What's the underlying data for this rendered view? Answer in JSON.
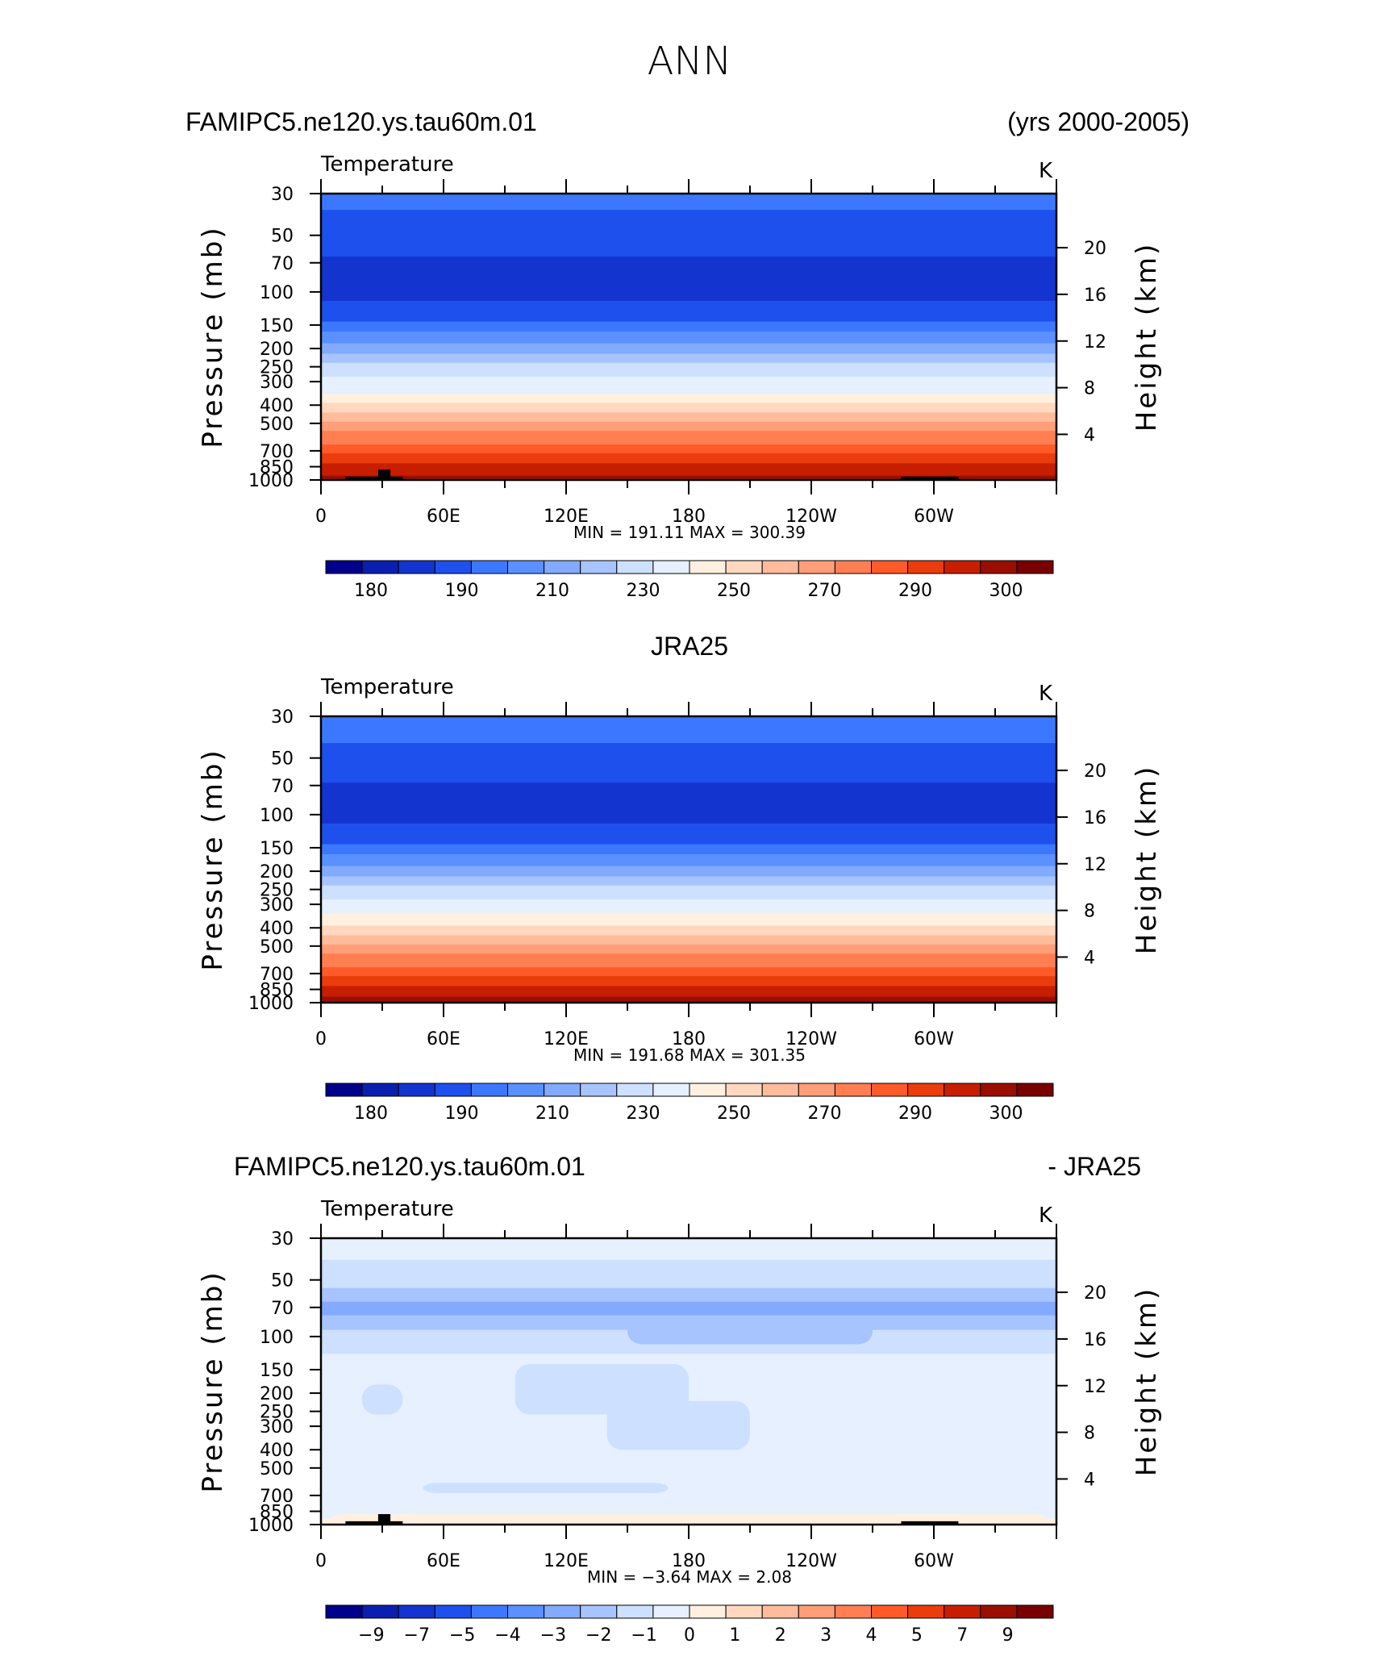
{
  "title": "ANN",
  "colors": {
    "abs_fill": [
      "#00008b",
      "#0a1fb0",
      "#1434d0",
      "#1e50ee",
      "#3c78ff",
      "#5a90ff",
      "#82aaff",
      "#a8c4ff",
      "#cde0ff",
      "#e6f0ff",
      "#fff0e0",
      "#ffd8bf",
      "#ffbc9c",
      "#ff9e78",
      "#ff7f52",
      "#ff5a28",
      "#ea3c0c",
      "#c81e00",
      "#9a0e00",
      "#780000"
    ],
    "diff_fill": [
      "#00008b",
      "#0a1fb0",
      "#1434d0",
      "#1e50ee",
      "#3c78ff",
      "#5a90ff",
      "#82aaff",
      "#a8c4ff",
      "#cde0ff",
      "#e6f0ff",
      "#fff0e0",
      "#ffd8bf",
      "#ffbc9c",
      "#ff9e78",
      "#ff7f52",
      "#ff5a28",
      "#ea3c0c",
      "#c81e00",
      "#9a0e00",
      "#780000"
    ]
  },
  "chart_data": [
    {
      "type": "heatmap",
      "name": "model",
      "title_left": "FAMIPC5.ne120.ys.tau60m.01",
      "title_right": "(yrs 2000-2005)",
      "variable": "Temperature",
      "units": "K",
      "ylabel": "Pressure (mb)",
      "y2label": "Height (km)",
      "xticks": [
        "0",
        "60E",
        "120E",
        "180",
        "120W",
        "60W"
      ],
      "xtick_values": [
        0,
        60,
        120,
        180,
        240,
        300
      ],
      "xlim": [
        0,
        360
      ],
      "yticks": [
        "30",
        "50",
        "70",
        "100",
        "150",
        "200",
        "250",
        "300",
        "400",
        "500",
        "700",
        "850",
        "1000"
      ],
      "ytick_values": [
        30,
        50,
        70,
        100,
        150,
        200,
        250,
        300,
        400,
        500,
        700,
        850,
        1000
      ],
      "ylim": [
        1000,
        30
      ],
      "y_scale": "log",
      "y2ticks": [
        "20",
        "16",
        "12",
        "8",
        "4"
      ],
      "y2tick_values": [
        20,
        16,
        12,
        8,
        4
      ],
      "min_label": "MIN = 191.11",
      "max_label": "MAX = 300.39",
      "min": 191.11,
      "max": 300.39,
      "profile": [
        {
          "p": 1000,
          "t": 292
        },
        {
          "p": 850,
          "t": 287
        },
        {
          "p": 700,
          "t": 279
        },
        {
          "p": 500,
          "t": 266
        },
        {
          "p": 400,
          "t": 257
        },
        {
          "p": 300,
          "t": 244
        },
        {
          "p": 250,
          "t": 232
        },
        {
          "p": 200,
          "t": 222
        },
        {
          "p": 150,
          "t": 212
        },
        {
          "p": 100,
          "t": 196
        },
        {
          "p": 70,
          "t": 198
        },
        {
          "p": 50,
          "t": 206
        },
        {
          "p": 30,
          "t": 213
        }
      ],
      "colorbar_labels": [
        "180",
        "190",
        "210",
        "230",
        "250",
        "270",
        "290",
        "300"
      ]
    },
    {
      "type": "heatmap",
      "name": "obs",
      "title_center": "JRA25",
      "variable": "Temperature",
      "units": "K",
      "ylabel": "Pressure (mb)",
      "y2label": "Height (km)",
      "xticks": [
        "0",
        "60E",
        "120E",
        "180",
        "120W",
        "60W"
      ],
      "xtick_values": [
        0,
        60,
        120,
        180,
        240,
        300
      ],
      "xlim": [
        0,
        360
      ],
      "yticks": [
        "30",
        "50",
        "70",
        "100",
        "150",
        "200",
        "250",
        "300",
        "400",
        "500",
        "700",
        "850",
        "1000"
      ],
      "ytick_values": [
        30,
        50,
        70,
        100,
        150,
        200,
        250,
        300,
        400,
        500,
        700,
        850,
        1000
      ],
      "ylim": [
        1000,
        30
      ],
      "y_scale": "log",
      "y2ticks": [
        "20",
        "16",
        "12",
        "8",
        "4"
      ],
      "y2tick_values": [
        20,
        16,
        12,
        8,
        4
      ],
      "min_label": "MIN = 191.68",
      "max_label": "MAX = 301.35",
      "min": 191.68,
      "max": 301.35,
      "profile": [
        {
          "p": 1000,
          "t": 293
        },
        {
          "p": 850,
          "t": 287
        },
        {
          "p": 700,
          "t": 279
        },
        {
          "p": 500,
          "t": 266
        },
        {
          "p": 400,
          "t": 257
        },
        {
          "p": 300,
          "t": 245
        },
        {
          "p": 250,
          "t": 233
        },
        {
          "p": 200,
          "t": 223
        },
        {
          "p": 150,
          "t": 212
        },
        {
          "p": 100,
          "t": 197
        },
        {
          "p": 70,
          "t": 199
        },
        {
          "p": 50,
          "t": 208
        },
        {
          "p": 30,
          "t": 214
        }
      ],
      "colorbar_labels": [
        "180",
        "190",
        "210",
        "230",
        "250",
        "270",
        "290",
        "300"
      ]
    },
    {
      "type": "heatmap",
      "name": "difference",
      "title_left": "FAMIPC5.ne120.ys.tau60m.01",
      "title_right": "- JRA25",
      "variable": "Temperature",
      "units": "K",
      "ylabel": "Pressure (mb)",
      "y2label": "Height (km)",
      "xticks": [
        "0",
        "60E",
        "120E",
        "180",
        "120W",
        "60W"
      ],
      "xtick_values": [
        0,
        60,
        120,
        180,
        240,
        300
      ],
      "xlim": [
        0,
        360
      ],
      "yticks": [
        "30",
        "50",
        "70",
        "100",
        "150",
        "200",
        "250",
        "300",
        "400",
        "500",
        "700",
        "850",
        "1000"
      ],
      "ytick_values": [
        30,
        50,
        70,
        100,
        150,
        200,
        250,
        300,
        400,
        500,
        700,
        850,
        1000
      ],
      "ylim": [
        1000,
        30
      ],
      "y_scale": "log",
      "y2ticks": [
        "20",
        "16",
        "12",
        "8",
        "4"
      ],
      "y2tick_values": [
        20,
        16,
        12,
        8,
        4
      ],
      "min_label": "MIN = −3.64",
      "max_label": "MAX = 2.08",
      "min": -3.64,
      "max": 2.08,
      "profile": [
        {
          "p": 1000,
          "d": 0.5
        },
        {
          "p": 850,
          "d": -0.5
        },
        {
          "p": 700,
          "d": -0.5
        },
        {
          "p": 500,
          "d": -0.5
        },
        {
          "p": 400,
          "d": -0.5
        },
        {
          "p": 300,
          "d": -0.5
        },
        {
          "p": 250,
          "d": -0.5
        },
        {
          "p": 200,
          "d": -0.5
        },
        {
          "p": 150,
          "d": -0.5
        },
        {
          "p": 100,
          "d": -1.5
        },
        {
          "p": 70,
          "d": -3.5
        },
        {
          "p": 60,
          "d": -2.5
        },
        {
          "p": 50,
          "d": -1.5
        },
        {
          "p": 30,
          "d": -0.5
        }
      ],
      "colorbar_labels": [
        "−9",
        "−7",
        "−5",
        "−4",
        "−3",
        "−2",
        "−1",
        "0",
        "1",
        "2",
        "3",
        "4",
        "5",
        "7",
        "9"
      ]
    }
  ]
}
